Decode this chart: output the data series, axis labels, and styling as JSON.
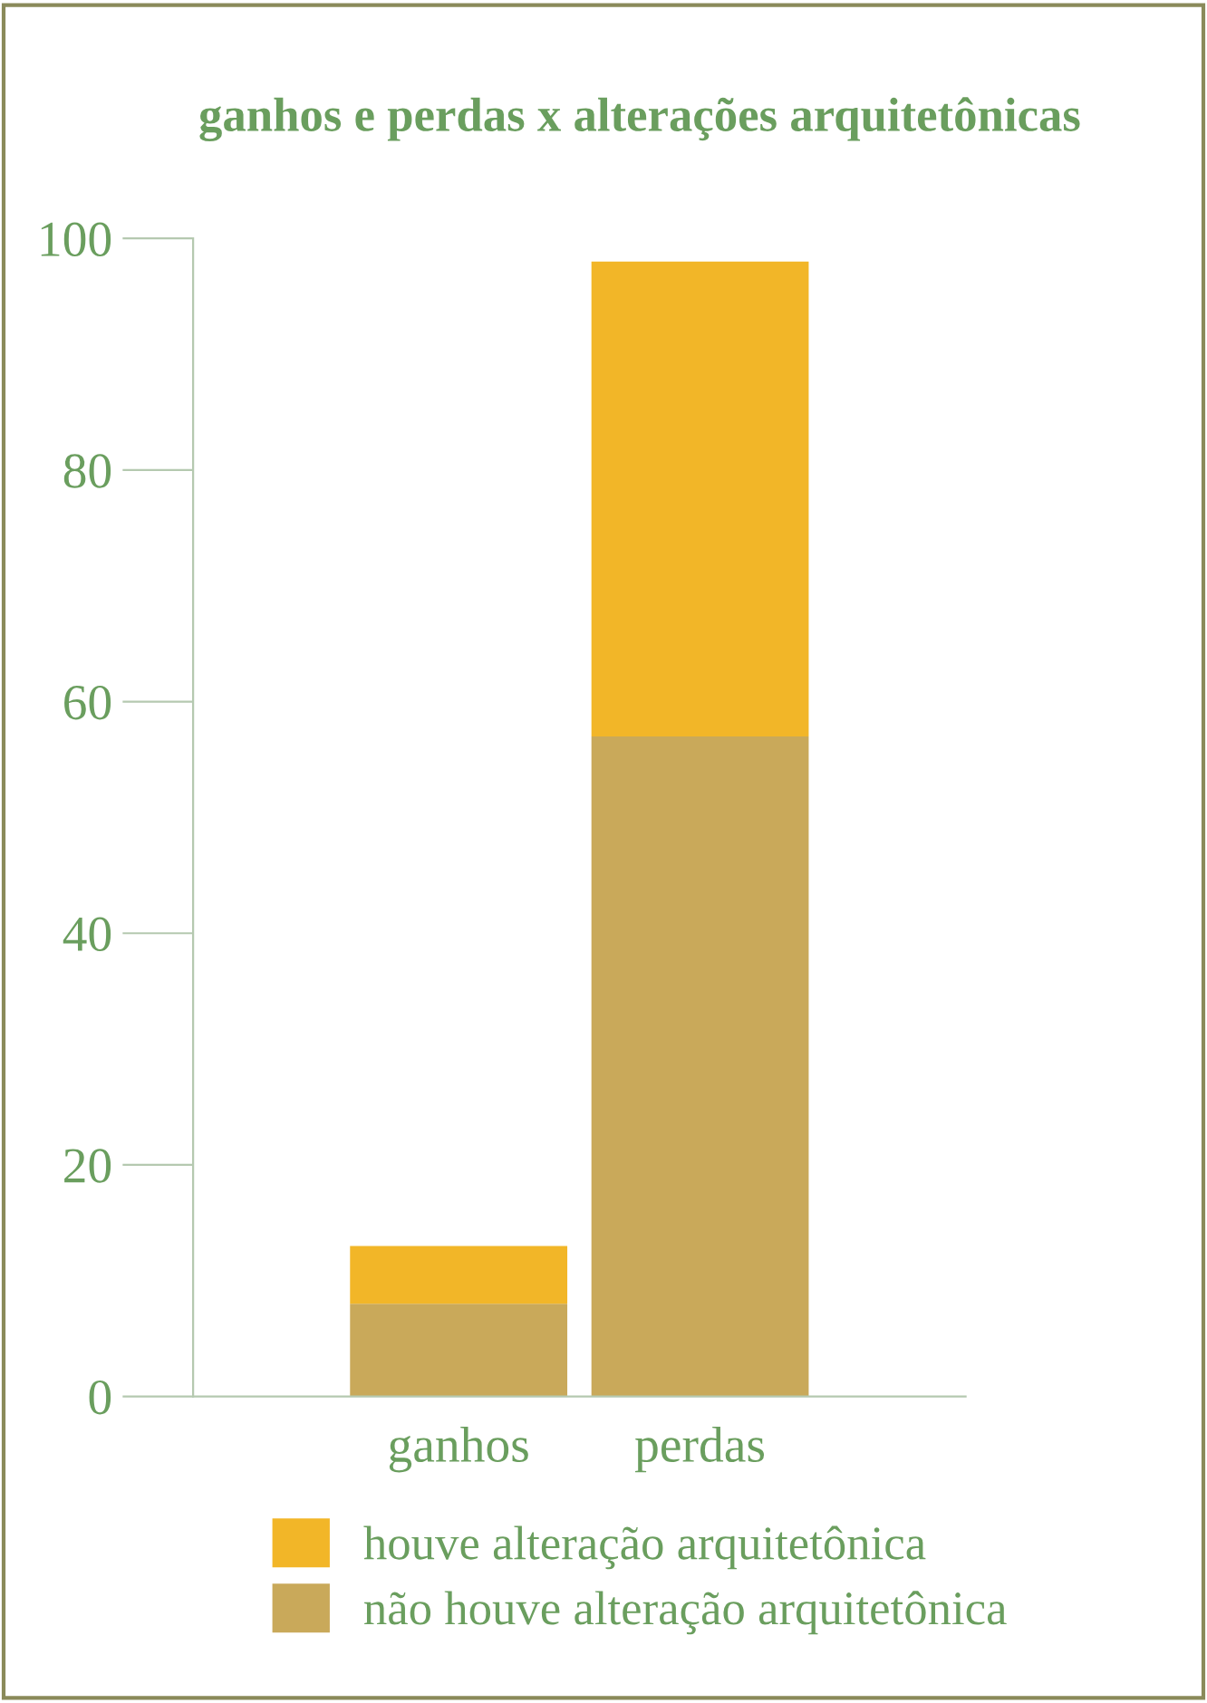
{
  "chart_data": {
    "type": "bar",
    "title": "ganhos e perdas x alterações arquitetônicas",
    "categories": [
      "ganhos",
      "perdas"
    ],
    "series": [
      {
        "name": "não houve alteração arquitetônica",
        "color": "#c9a95a",
        "values": [
          8,
          57
        ]
      },
      {
        "name": "houve alteração arquitetônica",
        "color": "#f2b628",
        "values": [
          5,
          41
        ]
      }
    ],
    "stacked": true,
    "ylim": [
      0,
      100
    ],
    "yticks": [
      0,
      20,
      40,
      60,
      80,
      100
    ],
    "grid": false,
    "legend": "bottom"
  }
}
